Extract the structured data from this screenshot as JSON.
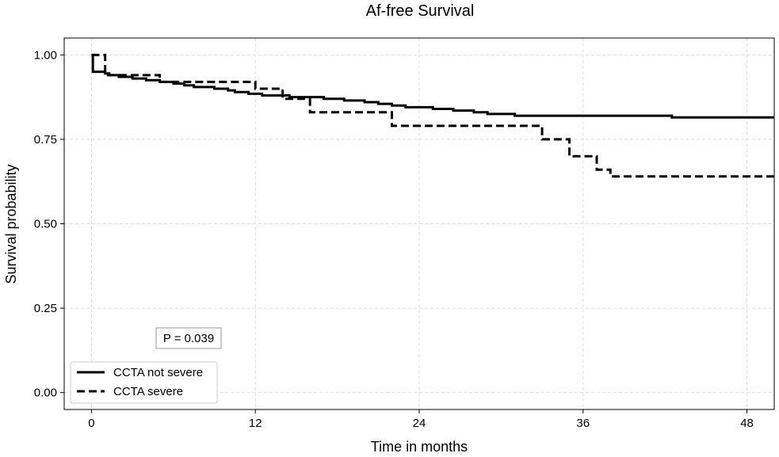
{
  "chart_data": {
    "type": "line",
    "title": "Af-free Survival",
    "xlabel": "Time in months",
    "ylabel": "Survival probability",
    "xlim": [
      -2,
      50
    ],
    "ylim": [
      -0.05,
      1.05
    ],
    "xticks": [
      0,
      12,
      24,
      36,
      48
    ],
    "xtick_labels": [
      "0",
      "12",
      "24",
      "36",
      "48"
    ],
    "yticks": [
      0.0,
      0.25,
      0.5,
      0.75,
      1.0
    ],
    "ytick_labels": [
      "0.00",
      "0.25",
      "0.50",
      "0.75",
      "1.00"
    ],
    "grid": true,
    "legend_position": "lower-left",
    "annotation": "P = 0.039",
    "series": [
      {
        "name": "CCTA not severe",
        "line_style": "solid",
        "color": "#000000",
        "step_points": [
          [
            0,
            1.0
          ],
          [
            0.1,
            0.95
          ],
          [
            1.0,
            0.945
          ],
          [
            1.3,
            0.94
          ],
          [
            2.0,
            0.935
          ],
          [
            3.0,
            0.93
          ],
          [
            4.0,
            0.925
          ],
          [
            5.0,
            0.92
          ],
          [
            6.0,
            0.915
          ],
          [
            6.8,
            0.91
          ],
          [
            7.5,
            0.905
          ],
          [
            9.0,
            0.9
          ],
          [
            10.0,
            0.895
          ],
          [
            10.5,
            0.89
          ],
          [
            11.5,
            0.885
          ],
          [
            12.5,
            0.88
          ],
          [
            13.0,
            0.88
          ],
          [
            14.5,
            0.875
          ],
          [
            17.0,
            0.87
          ],
          [
            18.5,
            0.865
          ],
          [
            20.0,
            0.86
          ],
          [
            21.0,
            0.855
          ],
          [
            22.0,
            0.85
          ],
          [
            23.0,
            0.845
          ],
          [
            24.0,
            0.845
          ],
          [
            25.0,
            0.84
          ],
          [
            26.5,
            0.835
          ],
          [
            28.0,
            0.83
          ],
          [
            29.0,
            0.825
          ],
          [
            31.0,
            0.82
          ],
          [
            34.0,
            0.82
          ],
          [
            42.5,
            0.815
          ]
        ],
        "x_end": 50
      },
      {
        "name": "CCTA severe",
        "line_style": "dashed",
        "color": "#000000",
        "step_points": [
          [
            0,
            1.0
          ],
          [
            1.0,
            0.94
          ],
          [
            5.0,
            0.92
          ],
          [
            12.0,
            0.9
          ],
          [
            14.0,
            0.87
          ],
          [
            16.0,
            0.83
          ],
          [
            22.0,
            0.79
          ],
          [
            33.0,
            0.75
          ],
          [
            35.0,
            0.7
          ],
          [
            37.0,
            0.66
          ],
          [
            38.0,
            0.64
          ]
        ],
        "x_end": 50
      }
    ]
  }
}
